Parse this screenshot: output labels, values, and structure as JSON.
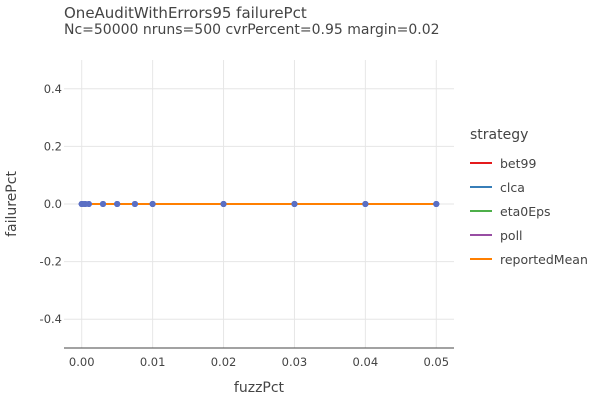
{
  "chart_data": {
    "type": "line",
    "title": "OneAuditWithErrors95 failurePct",
    "subtitle": "Nc=50000 nruns=500 cvrPercent=0.95 margin=0.02",
    "xlabel": "fuzzPct",
    "ylabel": "failurePct",
    "xlim": [
      -0.0025,
      0.0525
    ],
    "ylim": [
      -0.5,
      0.5
    ],
    "x_ticks": [
      0,
      0.01,
      0.02,
      0.03,
      0.04,
      0.05
    ],
    "x_tick_labels": [
      "0.00",
      "0.01",
      "0.02",
      "0.03",
      "0.04",
      "0.05"
    ],
    "y_ticks": [
      -0.4,
      -0.2,
      0,
      0.2,
      0.4
    ],
    "y_tick_labels": [
      "-0.4",
      "-0.2",
      "0.0",
      "0.2",
      "0.4"
    ],
    "grid": true,
    "legend_title": "strategy",
    "legend_position": "right",
    "x": [
      0,
      0.0001,
      0.0005,
      0.001,
      0.003,
      0.005,
      0.0075,
      0.01,
      0.02,
      0.03,
      0.04,
      0.05
    ],
    "series": [
      {
        "name": "bet99",
        "color": "#e41a1c",
        "values": [
          0,
          0,
          0,
          0,
          0,
          0,
          0,
          0,
          0,
          0,
          0,
          0
        ]
      },
      {
        "name": "clca",
        "color": "#377eb8",
        "values": [
          0,
          0,
          0,
          0,
          0,
          0,
          0,
          0,
          0,
          0,
          0,
          0
        ]
      },
      {
        "name": "eta0Eps",
        "color": "#4daf4a",
        "values": [
          0,
          0,
          0,
          0,
          0,
          0,
          0,
          0,
          0,
          0,
          0,
          0
        ]
      },
      {
        "name": "poll",
        "color": "#984ea3",
        "values": [
          0,
          0,
          0,
          0,
          0,
          0,
          0,
          0,
          0,
          0,
          0,
          0
        ]
      },
      {
        "name": "reportedMean",
        "color": "#ff7f00",
        "values": [
          0,
          0,
          0,
          0,
          0,
          0,
          0,
          0,
          0,
          0,
          0,
          0
        ]
      }
    ],
    "marker_color": "#5a6fc4"
  }
}
